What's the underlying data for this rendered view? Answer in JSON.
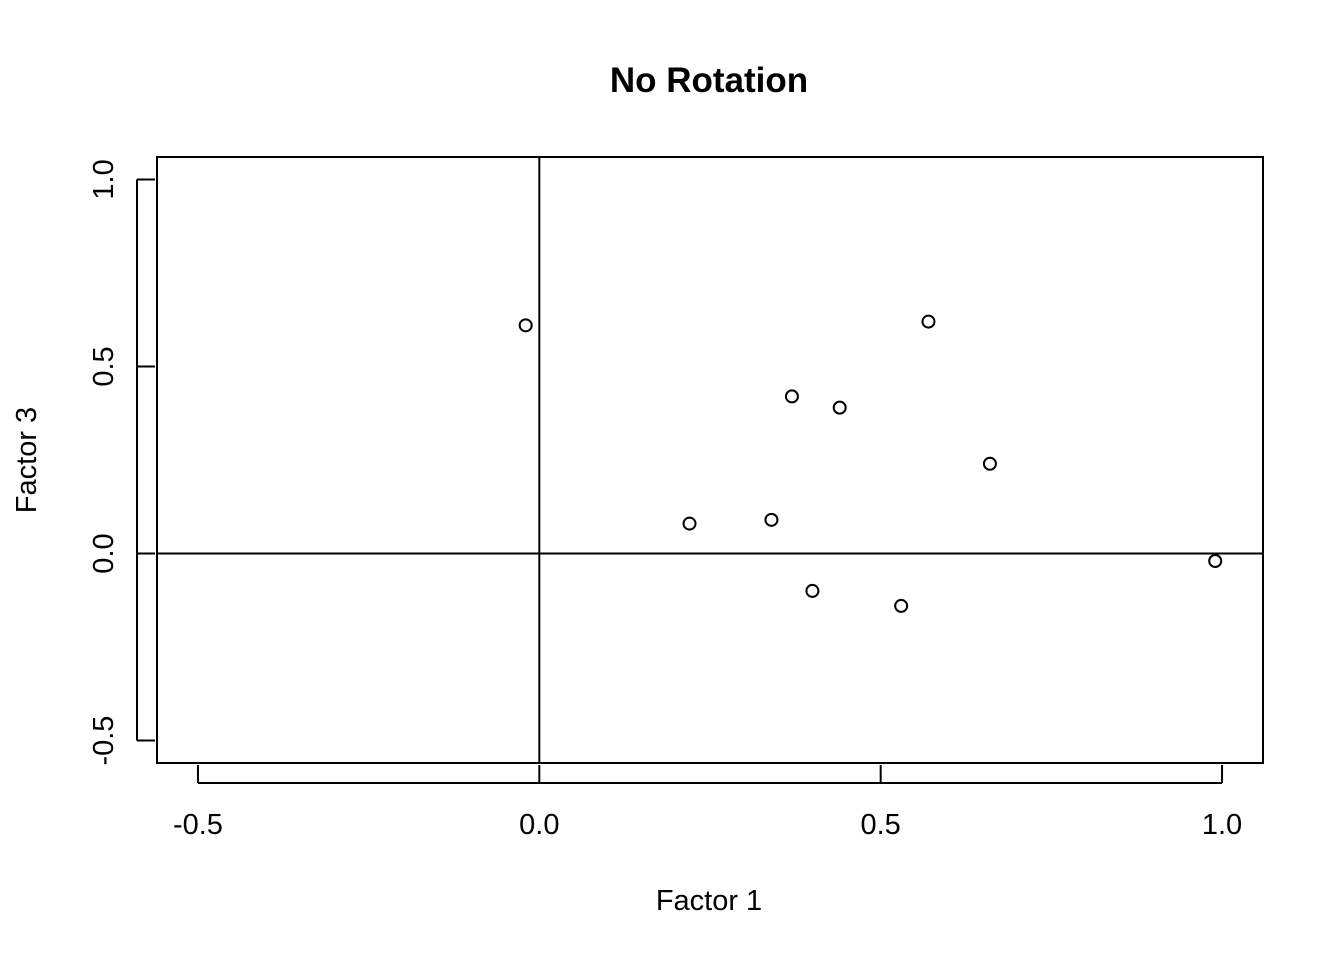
{
  "chart_data": {
    "type": "scatter",
    "title": "No Rotation",
    "xlabel": "Factor 1",
    "ylabel": "Factor 3",
    "xlim": [
      -0.56,
      1.06
    ],
    "ylim": [
      -0.56,
      1.06
    ],
    "xticks": [
      "-0.5",
      "0.0",
      "0.5",
      "1.0"
    ],
    "yticks": [
      "-0.5",
      "0.0",
      "0.5",
      "1.0"
    ],
    "reference_lines": {
      "x": 0,
      "y": 0
    },
    "grid": false,
    "marker": "open-circle",
    "points": [
      {
        "x": -0.02,
        "y": 0.61
      },
      {
        "x": 0.22,
        "y": 0.08
      },
      {
        "x": 0.34,
        "y": 0.09
      },
      {
        "x": 0.37,
        "y": 0.42
      },
      {
        "x": 0.4,
        "y": -0.1
      },
      {
        "x": 0.44,
        "y": 0.39
      },
      {
        "x": 0.53,
        "y": -0.14
      },
      {
        "x": 0.57,
        "y": 0.62
      },
      {
        "x": 0.66,
        "y": 0.24
      },
      {
        "x": 0.99,
        "y": -0.02
      }
    ]
  },
  "colors": {
    "ink": "#000000",
    "background": "#ffffff"
  }
}
